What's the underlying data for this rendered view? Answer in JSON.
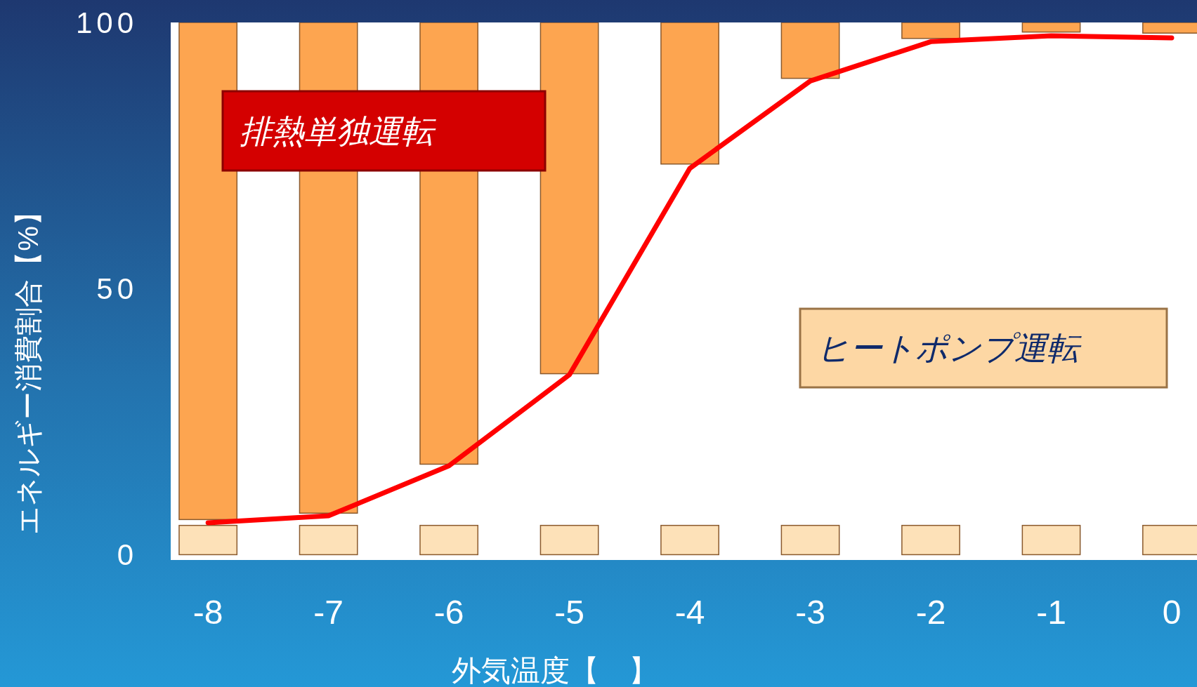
{
  "chart_data": {
    "type": "bar",
    "xlabel": "外気温度【　】",
    "ylabel": "エネルギー消費割合【%】",
    "categories": [
      "-8",
      "-7",
      "-6",
      "-5",
      "-4",
      "-3",
      "-2",
      "-1",
      "0"
    ],
    "ylim": [
      -1,
      100
    ],
    "yticks": [
      0,
      50,
      100
    ],
    "grid": false,
    "annotations": [
      "排熱単独運転",
      "ヒートポンプ運転"
    ],
    "series": [
      {
        "color": "#fde1b8",
        "base": [
          0,
          0,
          0,
          0,
          0,
          0,
          0,
          0,
          0
        ],
        "values": [
          5.5,
          5.5,
          5.5,
          5.5,
          5.5,
          5.5,
          5.5,
          5.5,
          5.5
        ]
      },
      {
        "color": "#fda550",
        "base": [
          6.6,
          7.8,
          17,
          34,
          73.4,
          89.5,
          97,
          98.2,
          98
        ],
        "values": [
          93.4,
          92.2,
          83,
          66,
          26.6,
          10.5,
          3,
          1.8,
          2
        ]
      },
      {
        "type": "line",
        "color": "#ff0000",
        "values": [
          6.0,
          7.3,
          16.7,
          33.8,
          72.6,
          89.0,
          96.4,
          97.5,
          97.1
        ]
      }
    ]
  }
}
